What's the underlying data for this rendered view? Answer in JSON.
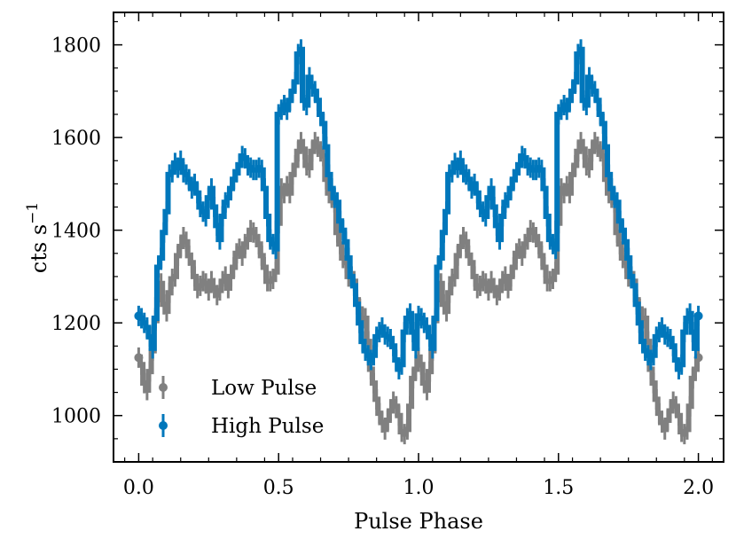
{
  "chart_data": {
    "type": "line",
    "title": "",
    "xlabel": "Pulse Phase",
    "ylabel": "cts s",
    "ylabel_superscript": "−1",
    "xlim": [
      -0.09,
      2.09
    ],
    "ylim": [
      900,
      1870
    ],
    "xticks": [
      0.0,
      0.5,
      1.0,
      1.5,
      2.0
    ],
    "xtick_labels": [
      "0.0",
      "0.5",
      "1.0",
      "1.5",
      "2.0"
    ],
    "yticks": [
      1000,
      1200,
      1400,
      1600,
      1800
    ],
    "ytick_labels": [
      "1000",
      "1200",
      "1400",
      "1600",
      "1800"
    ],
    "legend_position": "lower-left",
    "grid": false,
    "step_width": 0.01,
    "series": [
      {
        "name": "Low Pulse",
        "color": "#808080",
        "error": 22,
        "x": [
          0.0,
          0.01,
          0.02,
          0.03,
          0.04,
          0.05,
          0.06,
          0.07,
          0.08,
          0.09,
          0.1,
          0.11,
          0.12,
          0.13,
          0.14,
          0.15,
          0.16,
          0.17,
          0.18,
          0.19,
          0.2,
          0.21,
          0.22,
          0.23,
          0.24,
          0.25,
          0.26,
          0.27,
          0.28,
          0.29,
          0.3,
          0.31,
          0.32,
          0.33,
          0.34,
          0.35,
          0.36,
          0.37,
          0.38,
          0.39,
          0.4,
          0.41,
          0.42,
          0.43,
          0.44,
          0.45,
          0.46,
          0.47,
          0.48,
          0.49,
          0.5,
          0.51,
          0.52,
          0.53,
          0.54,
          0.55,
          0.56,
          0.57,
          0.58,
          0.59,
          0.6,
          0.61,
          0.62,
          0.63,
          0.64,
          0.65,
          0.66,
          0.67,
          0.68,
          0.69,
          0.7,
          0.71,
          0.72,
          0.73,
          0.74,
          0.75,
          0.76,
          0.77,
          0.78,
          0.79,
          0.8,
          0.81,
          0.82,
          0.83,
          0.84,
          0.85,
          0.86,
          0.87,
          0.88,
          0.89,
          0.9,
          0.91,
          0.92,
          0.93,
          0.94,
          0.95,
          0.96,
          0.97,
          0.98,
          0.99
        ],
        "values": [
          1125,
          1110,
          1070,
          1055,
          1095,
          1140,
          1205,
          1250,
          1285,
          1240,
          1225,
          1265,
          1295,
          1300,
          1345,
          1365,
          1385,
          1375,
          1345,
          1330,
          1300,
          1275,
          1280,
          1290,
          1285,
          1270,
          1290,
          1275,
          1260,
          1270,
          1290,
          1300,
          1275,
          1300,
          1320,
          1350,
          1360,
          1345,
          1370,
          1380,
          1400,
          1395,
          1385,
          1370,
          1345,
          1320,
          1290,
          1290,
          1295,
          1310,
          1415,
          1490,
          1480,
          1495,
          1480,
          1520,
          1540,
          1570,
          1590,
          1575,
          1540,
          1535,
          1570,
          1590,
          1580,
          1570,
          1560,
          1510,
          1480,
          1470,
          1460,
          1395,
          1370,
          1340,
          1330,
          1300,
          1300,
          1290,
          1250,
          1230,
          1210,
          1210,
          1160,
          1100,
          1070,
          1035,
          1005,
          985,
          970,
          990,
          1010,
          1030,
          1020,
          1000,
          965,
          960,
          970,
          1020,
          1080,
          1100
        ]
      },
      {
        "name": "High Pulse",
        "color": "#0077bb",
        "error": 22,
        "x": [
          0.0,
          0.01,
          0.02,
          0.03,
          0.04,
          0.05,
          0.06,
          0.07,
          0.08,
          0.09,
          0.1,
          0.11,
          0.12,
          0.13,
          0.14,
          0.15,
          0.16,
          0.17,
          0.18,
          0.19,
          0.2,
          0.21,
          0.22,
          0.23,
          0.24,
          0.25,
          0.26,
          0.27,
          0.28,
          0.29,
          0.3,
          0.31,
          0.32,
          0.33,
          0.34,
          0.35,
          0.36,
          0.37,
          0.38,
          0.39,
          0.4,
          0.41,
          0.42,
          0.43,
          0.44,
          0.45,
          0.46,
          0.47,
          0.48,
          0.49,
          0.5,
          0.51,
          0.52,
          0.53,
          0.54,
          0.55,
          0.56,
          0.57,
          0.58,
          0.59,
          0.6,
          0.61,
          0.62,
          0.63,
          0.64,
          0.65,
          0.66,
          0.67,
          0.68,
          0.69,
          0.7,
          0.71,
          0.72,
          0.73,
          0.74,
          0.75,
          0.76,
          0.77,
          0.78,
          0.79,
          0.8,
          0.81,
          0.82,
          0.83,
          0.84,
          0.85,
          0.86,
          0.87,
          0.88,
          0.89,
          0.9,
          0.91,
          0.92,
          0.93,
          0.94,
          0.95,
          0.96,
          0.97,
          0.98,
          0.99
        ],
        "values": [
          1215,
          1210,
          1200,
          1190,
          1170,
          1145,
          1210,
          1320,
          1340,
          1395,
          1440,
          1520,
          1525,
          1545,
          1535,
          1550,
          1525,
          1520,
          1510,
          1490,
          1500,
          1480,
          1450,
          1440,
          1430,
          1470,
          1490,
          1450,
          1410,
          1380,
          1430,
          1460,
          1470,
          1490,
          1510,
          1525,
          1540,
          1560,
          1555,
          1540,
          1535,
          1530,
          1530,
          1535,
          1530,
          1490,
          1430,
          1380,
          1370,
          1360,
          1650,
          1660,
          1670,
          1660,
          1680,
          1700,
          1720,
          1780,
          1790,
          1680,
          1670,
          1730,
          1710,
          1700,
          1680,
          1650,
          1630,
          1580,
          1520,
          1490,
          1470,
          1460,
          1420,
          1400,
          1375,
          1340,
          1300,
          1280,
          1240,
          1200,
          1160,
          1140,
          1130,
          1120,
          1130,
          1170,
          1180,
          1190,
          1175,
          1170,
          1165,
          1150,
          1120,
          1100,
          1110,
          1180,
          1210,
          1220,
          1180,
          1145
        ]
      }
    ]
  }
}
